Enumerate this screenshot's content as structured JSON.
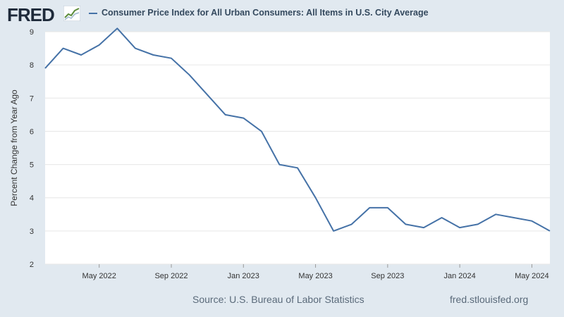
{
  "header": {
    "logo_text": "FRED",
    "title": "Consumer Price Index for All Urban Consumers: All Items in U.S. City Average"
  },
  "footer": {
    "source": "Source: U.S. Bureau of Labor Statistics",
    "url": "fred.stlouisfed.org"
  },
  "colors": {
    "line": "#4572a7",
    "background": "#e1e9f0",
    "plot": "#ffffff",
    "grid": "#e6e6e6"
  },
  "chart_data": {
    "type": "line",
    "title": "Consumer Price Index for All Urban Consumers: All Items in U.S. City Average",
    "xlabel": "",
    "ylabel": "Percent Change from Year Ago",
    "ylim": [
      2,
      9
    ],
    "yticks": [
      2,
      3,
      4,
      5,
      6,
      7,
      8,
      9
    ],
    "grid": true,
    "legend": "top-left",
    "x_start_month_index": 0,
    "x_tick_labels": [
      {
        "label": "May 2022",
        "month_index": 3
      },
      {
        "label": "Sep 2022",
        "month_index": 7
      },
      {
        "label": "Jan 2023",
        "month_index": 11
      },
      {
        "label": "May 2023",
        "month_index": 15
      },
      {
        "label": "Sep 2023",
        "month_index": 19
      },
      {
        "label": "Jan 2024",
        "month_index": 23
      },
      {
        "label": "May 2024",
        "month_index": 27
      }
    ],
    "series": [
      {
        "name": "Consumer Price Index for All Urban Consumers: All Items in U.S. City Average",
        "start": "2022-02",
        "values": [
          7.9,
          8.5,
          8.3,
          8.6,
          9.1,
          8.5,
          8.3,
          8.2,
          7.7,
          7.1,
          6.5,
          6.4,
          6.0,
          5.0,
          4.9,
          4.0,
          3.0,
          3.2,
          3.7,
          3.7,
          3.2,
          3.1,
          3.4,
          3.1,
          3.2,
          3.5,
          3.4,
          3.3,
          3.0
        ]
      }
    ]
  }
}
